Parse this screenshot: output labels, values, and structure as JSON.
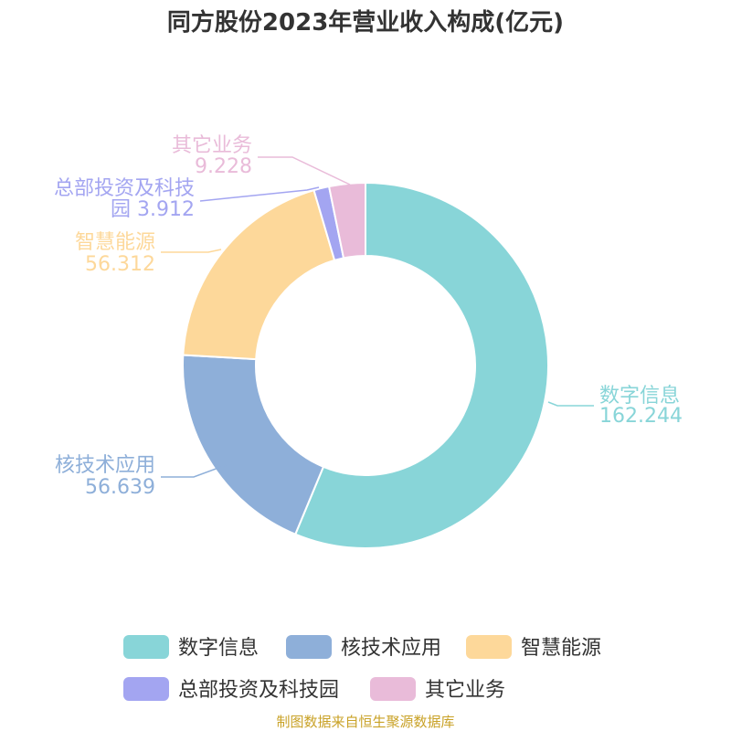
{
  "chart_data": {
    "type": "pie",
    "title": "同方股份2023年营业收入构成(亿元)",
    "slices": [
      {
        "name": "数字信息",
        "value": 162.244,
        "value_label": "162.244",
        "color": "#88d5d8"
      },
      {
        "name": "核技术应用",
        "value": 56.639,
        "value_label": "56.639",
        "color": "#8eafd9"
      },
      {
        "name": "智慧能源",
        "value": 56.312,
        "value_label": "56.312",
        "color": "#fdd89a"
      },
      {
        "name": "总部投资及科技园",
        "value": 3.912,
        "value_label": "3.912",
        "color": "#a3a5f1"
      },
      {
        "name": "其它业务",
        "value": 9.228,
        "value_label": "9.228",
        "color": "#e9bbd9"
      }
    ],
    "legend_position": "bottom"
  },
  "source": "制图数据来自恒生聚源数据库"
}
